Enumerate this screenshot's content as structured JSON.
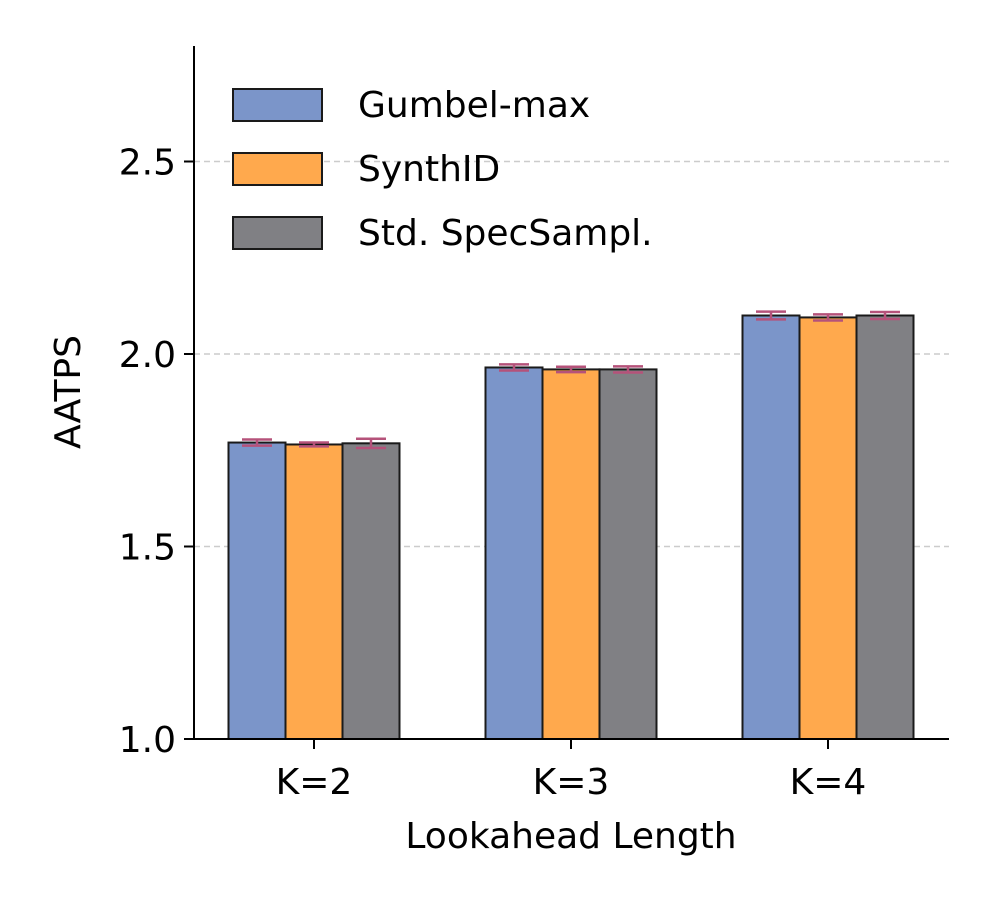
{
  "chart_data": {
    "type": "bar",
    "title": "",
    "xlabel": "Lookahead Length",
    "ylabel": "AATPS",
    "categories": [
      "K=2",
      "K=3",
      "K=4"
    ],
    "ylim": [
      1.0,
      2.8
    ],
    "yticks": [
      1.0,
      1.5,
      2.0,
      2.5
    ],
    "ytick_labels": [
      "1.0",
      "1.5",
      "2.0",
      "2.5"
    ],
    "grid": "horizontal dashed",
    "legend_position": "top-left",
    "error_bar_color": "#b5527a",
    "series": [
      {
        "name": "Gumbel-max",
        "color": "#7b95c9",
        "values": [
          1.77,
          1.965,
          2.1
        ],
        "errors": [
          0.008,
          0.008,
          0.01
        ]
      },
      {
        "name": "SynthID",
        "color": "#ffa94d",
        "values": [
          1.765,
          1.96,
          2.095
        ],
        "errors": [
          0.005,
          0.007,
          0.008
        ]
      },
      {
        "name": "Std. SpecSampl.",
        "color": "#808084",
        "values": [
          1.768,
          1.96,
          2.1
        ],
        "errors": [
          0.012,
          0.008,
          0.009
        ]
      }
    ]
  }
}
